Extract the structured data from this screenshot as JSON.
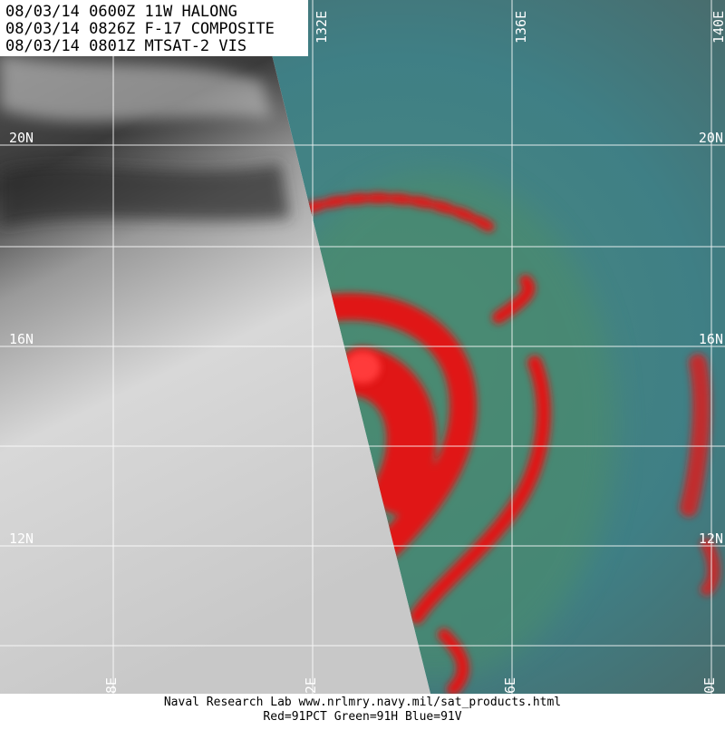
{
  "header": {
    "lines": [
      "08/03/14 0600Z 11W HALONG",
      "08/03/14 0826Z F-17 COMPOSITE",
      "08/03/14 0801Z MTSAT-2 VIS"
    ]
  },
  "grid": {
    "top_labels": [
      "132E",
      "136E",
      "140E"
    ],
    "bottom_labels": [
      "8E",
      "2E",
      "6E",
      "0E"
    ],
    "left_labels": [
      "20N",
      "16N",
      "12N"
    ],
    "right_labels": [
      "20N",
      "16N",
      "12N"
    ]
  },
  "footer": {
    "lines": [
      "Naval Research Lab  www.nrlmry.navy.mil/sat_products.html",
      "Red=91PCT  Green=91H  Blue=91V"
    ]
  }
}
